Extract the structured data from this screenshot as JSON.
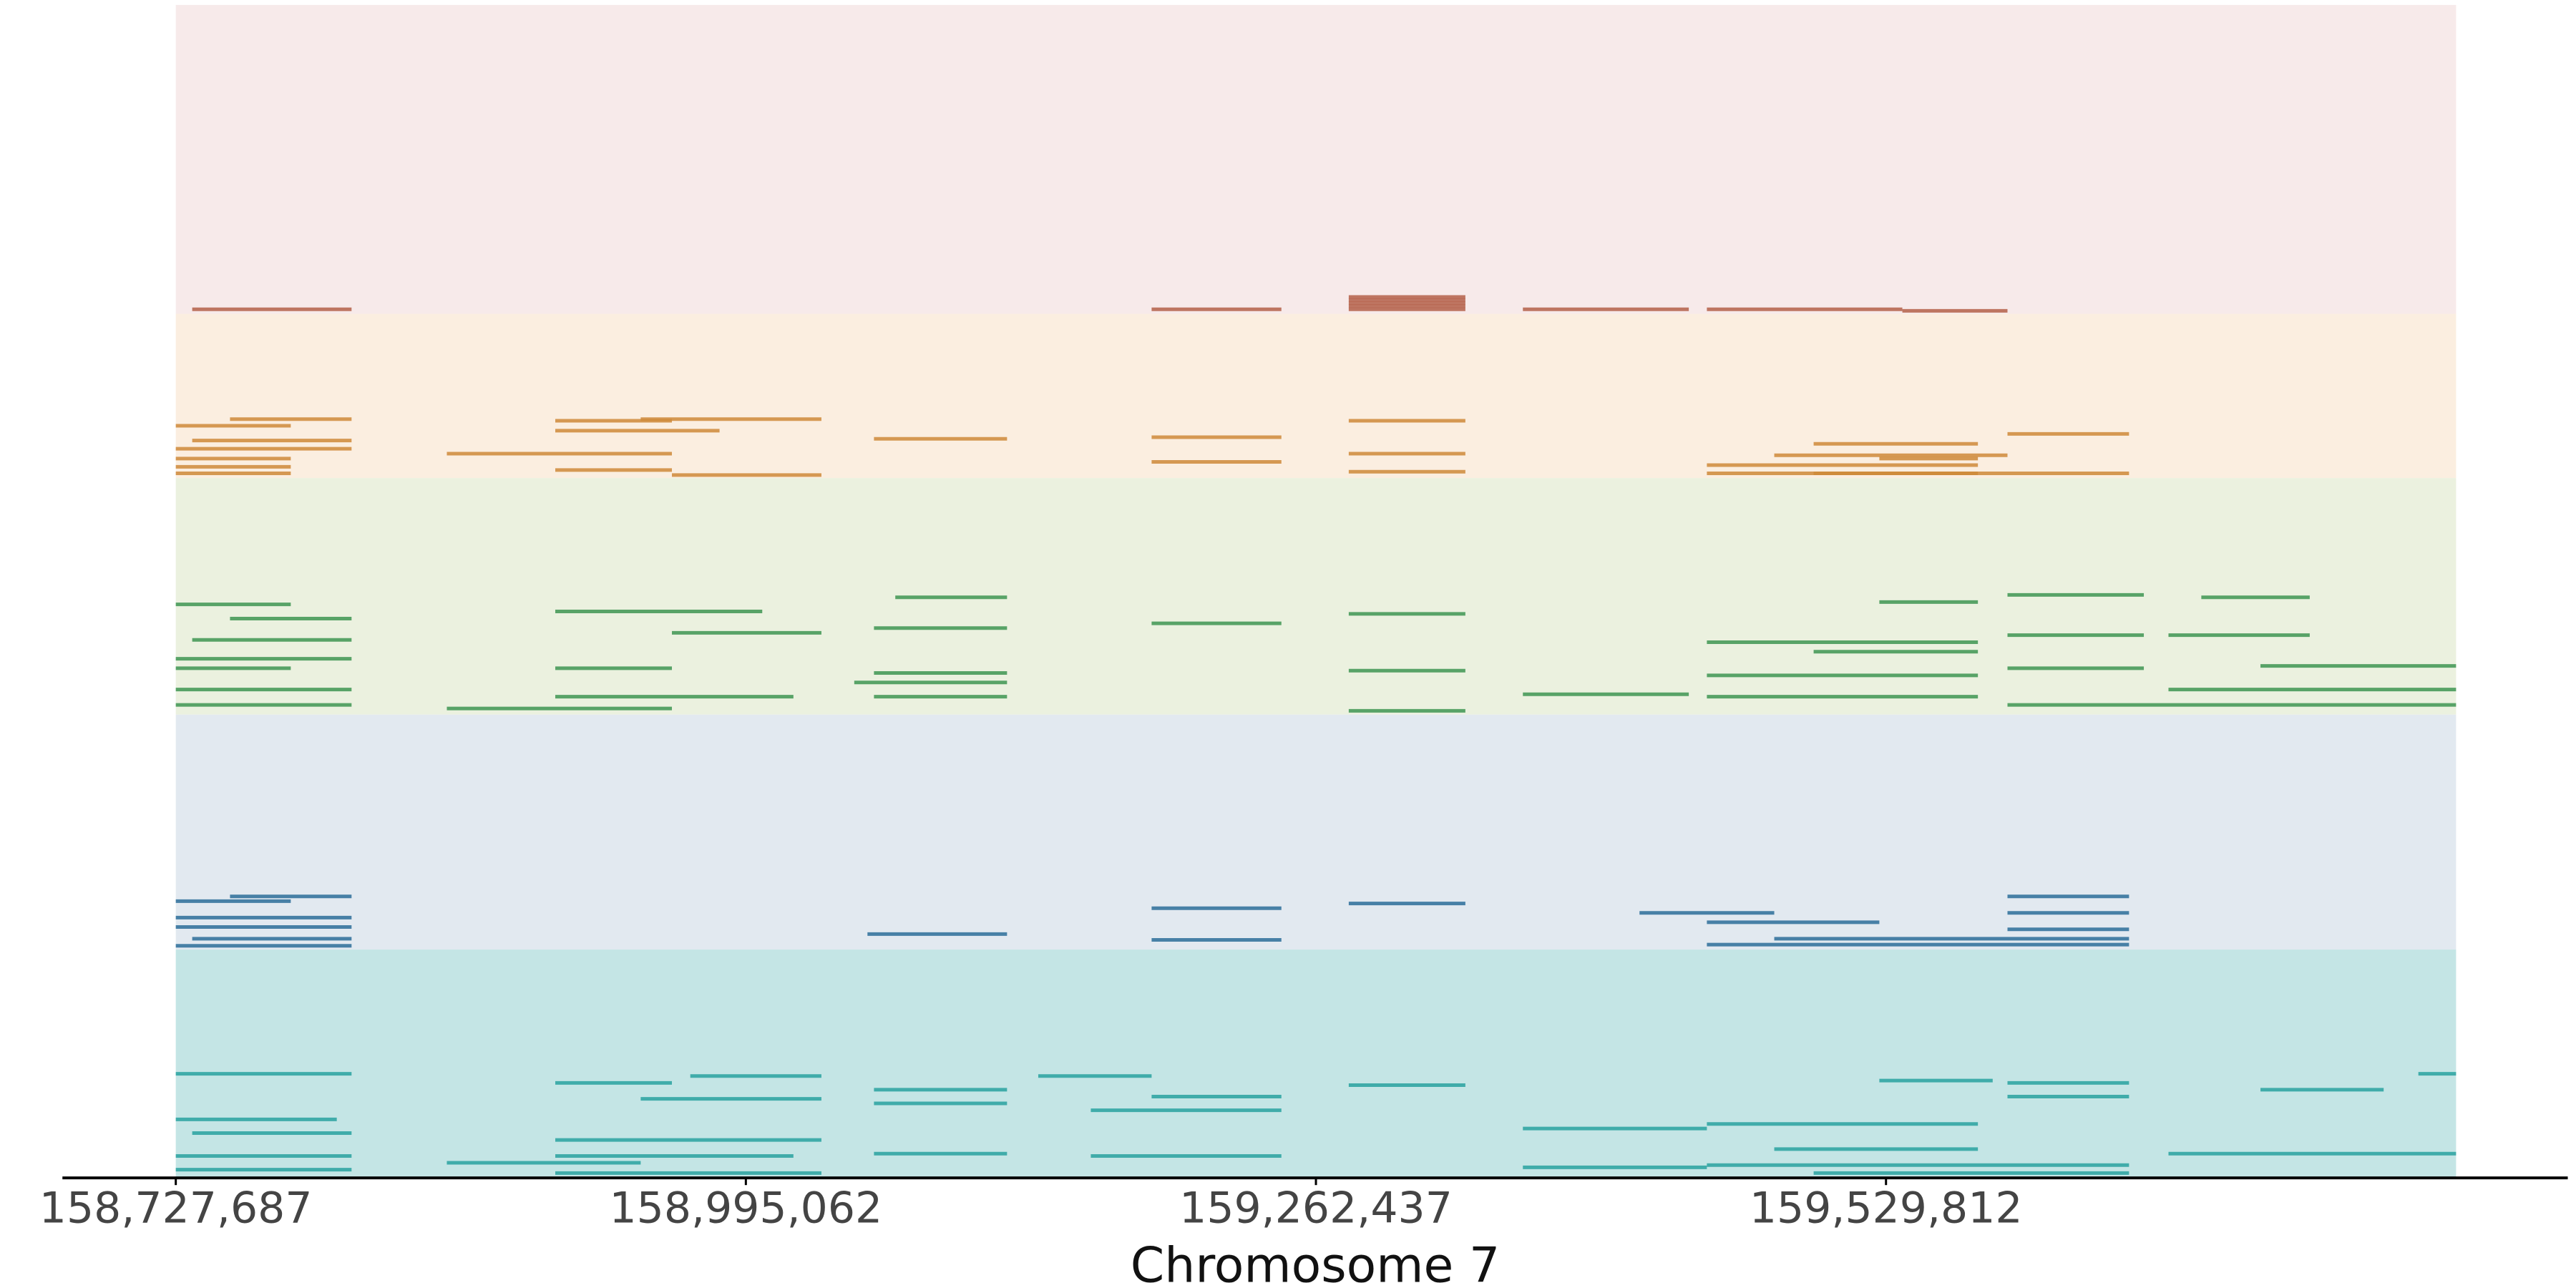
{
  "chart_data": {
    "type": "tracks",
    "x_label": "Chromosome 7",
    "xlim": [
      158727687,
      159797187
    ],
    "xticks": [
      {
        "value": 158727687,
        "label": "158,727,687"
      },
      {
        "value": 158995062,
        "label": "158,995,062"
      },
      {
        "value": 159262437,
        "label": "159,262,437"
      },
      {
        "value": 159529812,
        "label": "159,529,812"
      }
    ],
    "tracks": [
      {
        "color": "#b5614a",
        "background": "#f7eaea",
        "ylim": [
          0,
          100
        ],
        "segments": [
          {
            "start": 158735392,
            "end": 158810130,
            "y": 1
          },
          {
            "start": 159185370,
            "end": 159246240,
            "y": 1
          },
          {
            "start": 159277830,
            "end": 159332530,
            "y": 1
          },
          {
            "start": 159277830,
            "end": 159332530,
            "y": 2
          },
          {
            "start": 159277830,
            "end": 159332530,
            "y": 3
          },
          {
            "start": 159277830,
            "end": 159332530,
            "y": 4
          },
          {
            "start": 159277830,
            "end": 159332530,
            "y": 5
          },
          {
            "start": 159359500,
            "end": 159437320,
            "y": 1
          },
          {
            "start": 159445800,
            "end": 159537480,
            "y": 1
          },
          {
            "start": 159537480,
            "end": 159586790,
            "y": 0.5
          }
        ]
      },
      {
        "color": "#cf8a3a",
        "background": "#fbeee0",
        "ylim": [
          0,
          100
        ],
        "segments": [
          {
            "start": 158727687,
            "end": 158781622,
            "y": 31
          },
          {
            "start": 158753114,
            "end": 158810130,
            "y": 35
          },
          {
            "start": 158735392,
            "end": 158810130,
            "y": 22
          },
          {
            "start": 158727687,
            "end": 158810130,
            "y": 17
          },
          {
            "start": 158727687,
            "end": 158781622,
            "y": 11
          },
          {
            "start": 158727687,
            "end": 158781622,
            "y": 6
          },
          {
            "start": 158727687,
            "end": 158781622,
            "y": 2
          },
          {
            "start": 158854820,
            "end": 158960380,
            "y": 14
          },
          {
            "start": 158905673,
            "end": 158960380,
            "y": 34
          },
          {
            "start": 158905673,
            "end": 158982725,
            "y": 28
          },
          {
            "start": 158945740,
            "end": 159030500,
            "y": 35
          },
          {
            "start": 158905673,
            "end": 158960380,
            "y": 4
          },
          {
            "start": 158960380,
            "end": 159030500,
            "y": 1
          },
          {
            "start": 159055150,
            "end": 159117560,
            "y": 23
          },
          {
            "start": 159185370,
            "end": 159246240,
            "y": 24
          },
          {
            "start": 159185370,
            "end": 159246240,
            "y": 9
          },
          {
            "start": 159277830,
            "end": 159332530,
            "y": 34
          },
          {
            "start": 159277830,
            "end": 159332530,
            "y": 3
          },
          {
            "start": 159277830,
            "end": 159332530,
            "y": 14
          },
          {
            "start": 159445800,
            "end": 159572920,
            "y": 7
          },
          {
            "start": 159495870,
            "end": 159572920,
            "y": 20
          },
          {
            "start": 159495870,
            "end": 159572920,
            "y": 2
          },
          {
            "start": 159445800,
            "end": 159643800,
            "y": 2
          },
          {
            "start": 159586790,
            "end": 159643800,
            "y": 26
          },
          {
            "start": 159477400,
            "end": 159586790,
            "y": 13
          },
          {
            "start": 159526690,
            "end": 159572920,
            "y": 11
          }
        ]
      },
      {
        "color": "#3f9653",
        "background": "#ebf1df",
        "ylim": [
          0,
          100
        ],
        "segments": [
          {
            "start": 158727687,
            "end": 158781622,
            "y": 46
          },
          {
            "start": 158753114,
            "end": 158810130,
            "y": 40
          },
          {
            "start": 158727687,
            "end": 158810130,
            "y": 23
          },
          {
            "start": 158727687,
            "end": 158781622,
            "y": 19
          },
          {
            "start": 158735392,
            "end": 158810130,
            "y": 31
          },
          {
            "start": 158727687,
            "end": 158810130,
            "y": 10
          },
          {
            "start": 158727687,
            "end": 158810130,
            "y": 3.5
          },
          {
            "start": 158905673,
            "end": 159002750,
            "y": 43
          },
          {
            "start": 158905673,
            "end": 158960380,
            "y": 19
          },
          {
            "start": 158905673,
            "end": 159017370,
            "y": 7
          },
          {
            "start": 158854820,
            "end": 158960380,
            "y": 2
          },
          {
            "start": 158960380,
            "end": 159030500,
            "y": 34
          },
          {
            "start": 159065150,
            "end": 159117560,
            "y": 49
          },
          {
            "start": 159055150,
            "end": 159117560,
            "y": 36
          },
          {
            "start": 159055150,
            "end": 159117560,
            "y": 17
          },
          {
            "start": 159055150,
            "end": 159117560,
            "y": 7
          },
          {
            "start": 159045900,
            "end": 159117560,
            "y": 13
          },
          {
            "start": 159185370,
            "end": 159246240,
            "y": 38
          },
          {
            "start": 159277830,
            "end": 159332530,
            "y": 42
          },
          {
            "start": 159277830,
            "end": 159332530,
            "y": 18
          },
          {
            "start": 159277830,
            "end": 159332530,
            "y": 1
          },
          {
            "start": 159359500,
            "end": 159437320,
            "y": 8
          },
          {
            "start": 159445800,
            "end": 159572920,
            "y": 30
          },
          {
            "start": 159495870,
            "end": 159572920,
            "y": 26
          },
          {
            "start": 159445800,
            "end": 159572920,
            "y": 16
          },
          {
            "start": 159445800,
            "end": 159572920,
            "y": 7
          },
          {
            "start": 159526690,
            "end": 159572920,
            "y": 47
          },
          {
            "start": 159586790,
            "end": 159650740,
            "y": 50
          },
          {
            "start": 159586790,
            "end": 159650740,
            "y": 33
          },
          {
            "start": 159586790,
            "end": 159650740,
            "y": 19
          },
          {
            "start": 159586790,
            "end": 159797187,
            "y": 3.5
          },
          {
            "start": 159662300,
            "end": 159797187,
            "y": 10
          },
          {
            "start": 159705440,
            "end": 159797187,
            "y": 20
          },
          {
            "start": 159677700,
            "end": 159728550,
            "y": 49
          },
          {
            "start": 159662300,
            "end": 159728550,
            "y": 33
          }
        ]
      },
      {
        "color": "#2c6e9a",
        "background": "#e2e9f0",
        "ylim": [
          0,
          100
        ],
        "segments": [
          {
            "start": 158727687,
            "end": 158781622,
            "y": 20
          },
          {
            "start": 158753114,
            "end": 158810130,
            "y": 22
          },
          {
            "start": 158727687,
            "end": 158810130,
            "y": 13
          },
          {
            "start": 158727687,
            "end": 158810130,
            "y": 9
          },
          {
            "start": 158735392,
            "end": 158810130,
            "y": 4
          },
          {
            "start": 158727687,
            "end": 158810130,
            "y": 1
          },
          {
            "start": 159052100,
            "end": 159117560,
            "y": 6
          },
          {
            "start": 159185370,
            "end": 159246240,
            "y": 17
          },
          {
            "start": 159185370,
            "end": 159246240,
            "y": 3.5
          },
          {
            "start": 159277830,
            "end": 159332530,
            "y": 19
          },
          {
            "start": 159414200,
            "end": 159477400,
            "y": 15
          },
          {
            "start": 159445800,
            "end": 159526690,
            "y": 11
          },
          {
            "start": 159445800,
            "end": 159643800,
            "y": 1.5
          },
          {
            "start": 159477400,
            "end": 159643800,
            "y": 4
          },
          {
            "start": 159586790,
            "end": 159643800,
            "y": 22
          },
          {
            "start": 159586790,
            "end": 159643800,
            "y": 15
          },
          {
            "start": 159586790,
            "end": 159643800,
            "y": 8
          }
        ]
      },
      {
        "color": "#2aa3a0",
        "background": "#c4e5e5",
        "ylim": [
          0,
          100
        ],
        "segments": [
          {
            "start": 158727687,
            "end": 158810130,
            "y": 45
          },
          {
            "start": 158727687,
            "end": 158803200,
            "y": 25
          },
          {
            "start": 158735392,
            "end": 158810130,
            "y": 19
          },
          {
            "start": 158727687,
            "end": 158810130,
            "y": 9
          },
          {
            "start": 158727687,
            "end": 158810130,
            "y": 3
          },
          {
            "start": 158905673,
            "end": 158960380,
            "y": 41
          },
          {
            "start": 158969000,
            "end": 159030500,
            "y": 44
          },
          {
            "start": 158905673,
            "end": 159030500,
            "y": 16
          },
          {
            "start": 158905673,
            "end": 159017370,
            "y": 9
          },
          {
            "start": 158905673,
            "end": 159030500,
            "y": 1.5
          },
          {
            "start": 158945740,
            "end": 159030500,
            "y": 34
          },
          {
            "start": 158854820,
            "end": 158945740,
            "y": 6
          },
          {
            "start": 159055150,
            "end": 159117560,
            "y": 38
          },
          {
            "start": 159055150,
            "end": 159117560,
            "y": 32
          },
          {
            "start": 159055150,
            "end": 159117560,
            "y": 10
          },
          {
            "start": 159132200,
            "end": 159185370,
            "y": 44
          },
          {
            "start": 159156850,
            "end": 159246240,
            "y": 29
          },
          {
            "start": 159185370,
            "end": 159246240,
            "y": 35
          },
          {
            "start": 159156850,
            "end": 159246240,
            "y": 9
          },
          {
            "start": 159277830,
            "end": 159332530,
            "y": 40
          },
          {
            "start": 159359500,
            "end": 159445800,
            "y": 21
          },
          {
            "start": 159359500,
            "end": 159445800,
            "y": 4
          },
          {
            "start": 159445800,
            "end": 159572920,
            "y": 23
          },
          {
            "start": 159477400,
            "end": 159572920,
            "y": 12
          },
          {
            "start": 159445800,
            "end": 159643800,
            "y": 5
          },
          {
            "start": 159526690,
            "end": 159579850,
            "y": 42
          },
          {
            "start": 159586790,
            "end": 159643800,
            "y": 41
          },
          {
            "start": 159586790,
            "end": 159643800,
            "y": 35
          },
          {
            "start": 159495870,
            "end": 159643800,
            "y": 1.5
          },
          {
            "start": 159662300,
            "end": 159797187,
            "y": 10
          },
          {
            "start": 159705440,
            "end": 159763220,
            "y": 38
          },
          {
            "start": 159779500,
            "end": 159797187,
            "y": 45
          }
        ]
      }
    ]
  }
}
